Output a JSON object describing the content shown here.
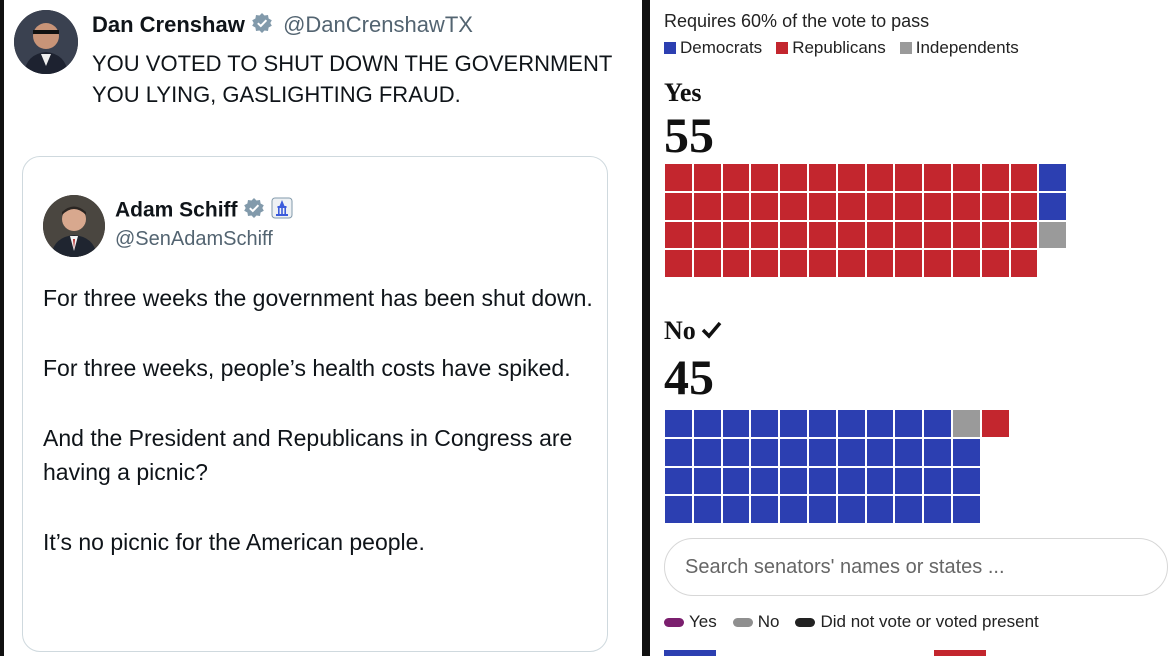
{
  "tweet": {
    "author_name": "Dan Crenshaw",
    "author_handle": "@DanCrenshawTX",
    "text_line1": "YOU VOTED TO SHUT DOWN THE GOVERNMENT",
    "text_line2": "YOU LYING, GASLIGHTING FRAUD."
  },
  "quoted_tweet": {
    "author_name": "Adam Schiff",
    "author_handle": "@SenAdamSchiff",
    "paragraphs": [
      "For three weeks the government has been shut down.",
      "For three weeks, people’s health costs have spiked.",
      "And the President and Republicans in Congress are having a picnic?",
      "It’s no picnic for the American people."
    ]
  },
  "vote_panel": {
    "requirement": "Requires 60% of the vote to pass",
    "legend": {
      "democrats": "Democrats",
      "republicans": "Republicans",
      "independents": "Independents"
    },
    "yes_label": "Yes",
    "yes_count": "55",
    "no_label": "No",
    "no_count": "45",
    "search_placeholder": "Search senators' names or states ...",
    "key": {
      "yes": "Yes",
      "no": "No",
      "not_voting": "Did not vote or voted present"
    }
  },
  "colors": {
    "democrat": "#2c3fb1",
    "republican": "#c3262e",
    "independent": "#9a9a9a",
    "verified": "#829aab",
    "yes_pill": "#7b1f6e",
    "no_pill": "#8f8f8f",
    "not_voting_pill": "#222222"
  },
  "chart_data": {
    "type": "waffle",
    "title": "Requires 60% of the vote to pass",
    "series": [
      {
        "name": "Yes",
        "total": 55,
        "republicans": 52,
        "democrats": 2,
        "independents": 1
      },
      {
        "name": "No",
        "total": 45,
        "democrats": 43,
        "independents": 1,
        "republicans": 1
      }
    ],
    "legend": [
      "Democrats",
      "Republicans",
      "Independents"
    ],
    "result": "No"
  }
}
